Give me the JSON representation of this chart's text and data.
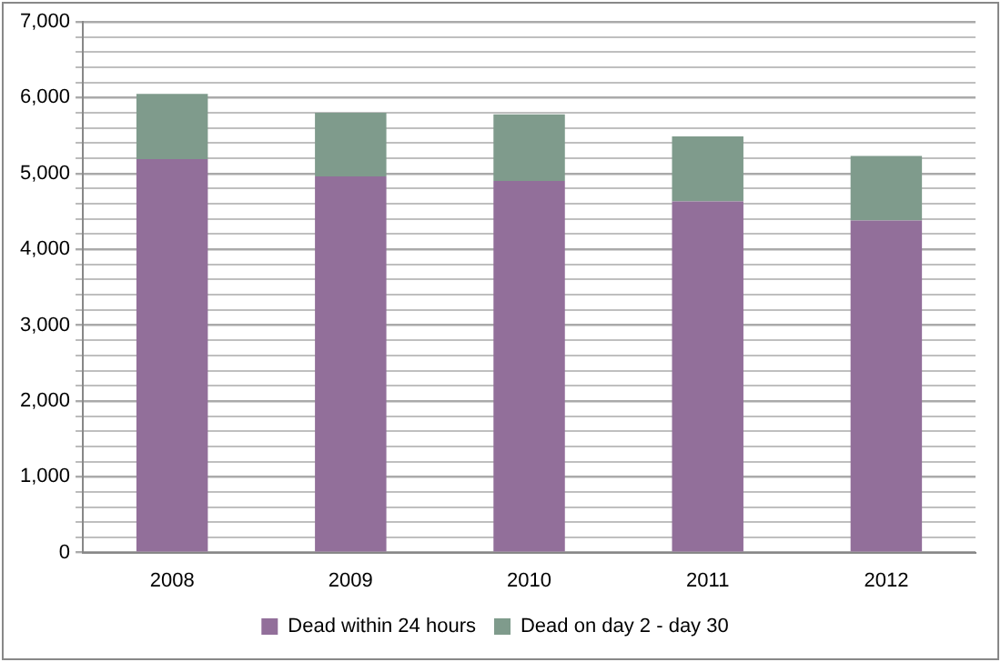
{
  "chart_data": {
    "type": "bar",
    "stacked": true,
    "categories": [
      "2008",
      "2009",
      "2010",
      "2011",
      "2012"
    ],
    "series": [
      {
        "name": "Dead within 24 hours",
        "color": "#926f9a",
        "values": [
          5190,
          4960,
          4900,
          4630,
          4380
        ]
      },
      {
        "name": "Dead on day 2 - day 30",
        "color": "#7f9b8c",
        "values": [
          860,
          840,
          880,
          860,
          850
        ]
      }
    ],
    "ylim": [
      0,
      7000
    ],
    "yticks": [
      0,
      {
        "value": 200,
        "label": null
      },
      {
        "value": 400,
        "label": null
      },
      {
        "value": 600,
        "label": null
      },
      {
        "value": 800,
        "label": null
      },
      "1,000",
      {
        "value": 1200,
        "label": null
      },
      {
        "value": 1400,
        "label": null
      },
      {
        "value": 1600,
        "label": null
      },
      {
        "value": 1800,
        "label": null
      },
      {
        "value": 2000,
        "label": "2,000"
      },
      {
        "value": 2200,
        "label": null
      },
      {
        "value": 2400,
        "label": null
      },
      {
        "value": 2600,
        "label": null
      },
      {
        "value": 2800,
        "label": null
      },
      {
        "value": 3000,
        "label": "3,000"
      },
      {
        "value": 3200,
        "label": null
      },
      {
        "value": 3400,
        "label": null
      },
      {
        "value": 3600,
        "label": null
      },
      {
        "value": 3800,
        "label": null
      },
      {
        "value": 4000,
        "label": "4,000"
      },
      {
        "value": 4200,
        "label": null
      },
      {
        "value": 4400,
        "label": null
      },
      {
        "value": 4600,
        "label": null
      },
      {
        "value": 4800,
        "label": null
      },
      {
        "value": 5000,
        "label": "5,000"
      },
      {
        "value": 5200,
        "label": null
      },
      {
        "value": 5400,
        "label": null
      },
      {
        "value": 5600,
        "label": null
      },
      {
        "value": 5800,
        "label": null
      },
      {
        "value": 6000,
        "label": "6,000"
      },
      {
        "value": 6200,
        "label": null
      },
      {
        "value": 6400,
        "label": null
      },
      {
        "value": 6600,
        "label": null
      },
      {
        "value": 6800,
        "label": null
      },
      {
        "value": 7000,
        "label": "7,000"
      }
    ],
    "grid": "y",
    "legend": "bottom"
  }
}
